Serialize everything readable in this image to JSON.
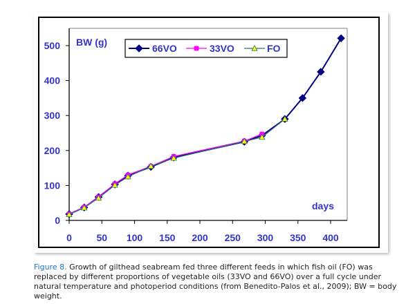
{
  "chart_data": {
    "type": "line",
    "title": "",
    "xlabel": "days",
    "ylabel": "BW (g)",
    "xlim": [
      0,
      430
    ],
    "ylim": [
      0,
      550
    ],
    "x_ticks": [
      0,
      50,
      100,
      150,
      200,
      250,
      300,
      350,
      400
    ],
    "y_ticks": [
      0,
      100,
      200,
      300,
      400,
      500
    ],
    "grid": false,
    "legend_position": "top-center",
    "series": [
      {
        "name": "66VO",
        "color": "#000080",
        "marker": "diamond",
        "x": [
          0,
          23,
          45,
          70,
          90,
          125,
          160,
          268,
          295,
          330,
          357,
          385,
          416
        ],
        "y": [
          18,
          37,
          67,
          103,
          128,
          153,
          180,
          225,
          243,
          290,
          350,
          425,
          521
        ]
      },
      {
        "name": "33VO",
        "color": "#ff00ff",
        "marker": "square",
        "x": [
          0,
          23,
          45,
          70,
          90,
          125,
          160,
          268,
          295
        ],
        "y": [
          18,
          38,
          67,
          105,
          130,
          155,
          183,
          227,
          247
        ]
      },
      {
        "name": "FO",
        "color": "#2f6f6f",
        "marker_fill": "#ffff00",
        "marker": "triangle",
        "x": [
          0,
          23,
          45,
          70,
          90,
          125,
          160,
          268,
          295,
          330
        ],
        "y": [
          17,
          36,
          64,
          101,
          125,
          155,
          178,
          226,
          238,
          290
        ]
      }
    ]
  },
  "caption": {
    "figure_label": "Figure 8.",
    "text": " Growth of gilthead seabream fed three different feeds in which fish oil (FO) was replaced by different proportions of vegetable oils (33VO and 66VO) over a full cycle under natural temperature and photoperiod conditions (from Benedito-Palos et al., 2009); BW = body weight."
  }
}
